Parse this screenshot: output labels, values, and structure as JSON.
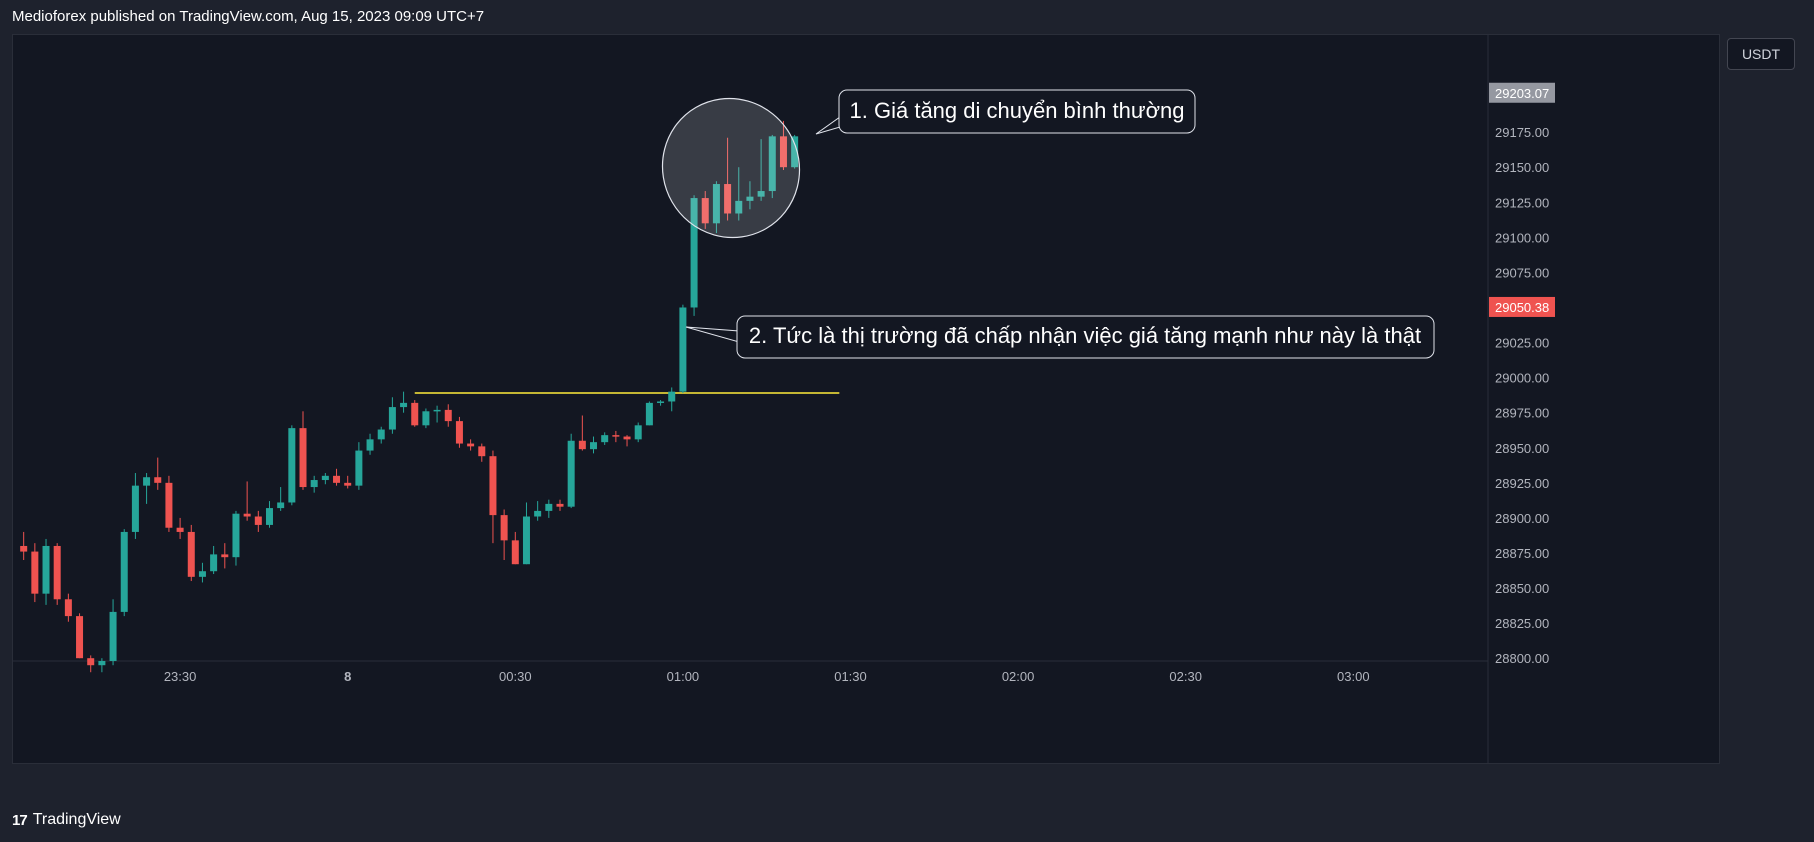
{
  "header": {
    "text": "Medioforex published on TradingView.com, Aug 15, 2023 09:09 UTC+7"
  },
  "footer": {
    "logo_icon": "tradingview-logo-icon",
    "brand": "TradingView"
  },
  "currency": "USDT",
  "colors": {
    "bull": "#26a69a",
    "bear": "#ef5350",
    "background": "#131722",
    "level_line": "#ffeb3b",
    "last_price_badge": "#ef5350",
    "high_badge": "#9598a1"
  },
  "chart_data": {
    "type": "candlestick",
    "x_ticks": [
      "23:30",
      "8",
      "00:30",
      "01:00",
      "01:30",
      "02:00",
      "02:30",
      "03:00"
    ],
    "y_ticks": [
      28800.0,
      28825.0,
      28850.0,
      28875.0,
      28900.0,
      28925.0,
      28950.0,
      28975.0,
      29000.0,
      29025.0,
      29050.0,
      29075.0,
      29100.0,
      29125.0,
      29150.0,
      29175.0
    ],
    "ylim": [
      28798,
      29220
    ],
    "candle_interval_minutes": 2,
    "price_labels": [
      {
        "value": 29203.07,
        "text": "29203.07",
        "kind": "high"
      },
      {
        "value": 29050.38,
        "text": "29050.38",
        "kind": "last"
      }
    ],
    "horizontal_level": {
      "value": 28989,
      "from": "00:12",
      "to": "01:28"
    },
    "candles": [
      {
        "t": "23:02",
        "o": 28880,
        "h": 28890,
        "l": 28870,
        "c": 28876
      },
      {
        "t": "23:04",
        "o": 28876,
        "h": 28882,
        "l": 28840,
        "c": 28846
      },
      {
        "t": "23:06",
        "o": 28846,
        "h": 28885,
        "l": 28838,
        "c": 28880
      },
      {
        "t": "23:08",
        "o": 28880,
        "h": 28882,
        "l": 28838,
        "c": 28842
      },
      {
        "t": "23:10",
        "o": 28842,
        "h": 28846,
        "l": 28826,
        "c": 28830
      },
      {
        "t": "23:12",
        "o": 28830,
        "h": 28832,
        "l": 28800,
        "c": 28800
      },
      {
        "t": "23:14",
        "o": 28800,
        "h": 28802,
        "l": 28790,
        "c": 28795
      },
      {
        "t": "23:16",
        "o": 28795,
        "h": 28800,
        "l": 28790,
        "c": 28798
      },
      {
        "t": "23:18",
        "o": 28798,
        "h": 28842,
        "l": 28795,
        "c": 28833
      },
      {
        "t": "23:20",
        "o": 28833,
        "h": 28892,
        "l": 28830,
        "c": 28890
      },
      {
        "t": "23:22",
        "o": 28890,
        "h": 28932,
        "l": 28885,
        "c": 28923
      },
      {
        "t": "23:24",
        "o": 28923,
        "h": 28932,
        "l": 28910,
        "c": 28929
      },
      {
        "t": "23:26",
        "o": 28929,
        "h": 28943,
        "l": 28920,
        "c": 28925
      },
      {
        "t": "23:28",
        "o": 28925,
        "h": 28930,
        "l": 28890,
        "c": 28893
      },
      {
        "t": "23:30",
        "o": 28893,
        "h": 28900,
        "l": 28885,
        "c": 28890
      },
      {
        "t": "23:32",
        "o": 28890,
        "h": 28895,
        "l": 28855,
        "c": 28858
      },
      {
        "t": "23:34",
        "o": 28858,
        "h": 28868,
        "l": 28854,
        "c": 28862
      },
      {
        "t": "23:36",
        "o": 28862,
        "h": 28880,
        "l": 28860,
        "c": 28874
      },
      {
        "t": "23:38",
        "o": 28874,
        "h": 28882,
        "l": 28864,
        "c": 28872
      },
      {
        "t": "23:40",
        "o": 28872,
        "h": 28905,
        "l": 28866,
        "c": 28903
      },
      {
        "t": "23:42",
        "o": 28903,
        "h": 28926,
        "l": 28898,
        "c": 28901
      },
      {
        "t": "23:44",
        "o": 28901,
        "h": 28905,
        "l": 28890,
        "c": 28895
      },
      {
        "t": "23:46",
        "o": 28895,
        "h": 28912,
        "l": 28893,
        "c": 28907
      },
      {
        "t": "23:48",
        "o": 28907,
        "h": 28922,
        "l": 28905,
        "c": 28911
      },
      {
        "t": "23:50",
        "o": 28911,
        "h": 28966,
        "l": 28909,
        "c": 28964
      },
      {
        "t": "23:52",
        "o": 28964,
        "h": 28976,
        "l": 28920,
        "c": 28922
      },
      {
        "t": "23:54",
        "o": 28922,
        "h": 28930,
        "l": 28918,
        "c": 28927
      },
      {
        "t": "23:56",
        "o": 28927,
        "h": 28932,
        "l": 28924,
        "c": 28930
      },
      {
        "t": "23:58",
        "o": 28930,
        "h": 28935,
        "l": 28923,
        "c": 28925
      },
      {
        "t": "00:00",
        "o": 28925,
        "h": 28930,
        "l": 28921,
        "c": 28923
      },
      {
        "t": "00:02",
        "o": 28923,
        "h": 28954,
        "l": 28920,
        "c": 28948
      },
      {
        "t": "00:04",
        "o": 28948,
        "h": 28960,
        "l": 28945,
        "c": 28956
      },
      {
        "t": "00:06",
        "o": 28956,
        "h": 28965,
        "l": 28953,
        "c": 28963
      },
      {
        "t": "00:08",
        "o": 28963,
        "h": 28986,
        "l": 28960,
        "c": 28979
      },
      {
        "t": "00:10",
        "o": 28979,
        "h": 28990,
        "l": 28975,
        "c": 28982
      },
      {
        "t": "00:12",
        "o": 28982,
        "h": 28984,
        "l": 28965,
        "c": 28966
      },
      {
        "t": "00:14",
        "o": 28966,
        "h": 28978,
        "l": 28964,
        "c": 28976
      },
      {
        "t": "00:16",
        "o": 28976,
        "h": 28980,
        "l": 28968,
        "c": 28977
      },
      {
        "t": "00:18",
        "o": 28977,
        "h": 28981,
        "l": 28965,
        "c": 28969
      },
      {
        "t": "00:20",
        "o": 28969,
        "h": 28972,
        "l": 28950,
        "c": 28953
      },
      {
        "t": "00:22",
        "o": 28953,
        "h": 28956,
        "l": 28948,
        "c": 28951
      },
      {
        "t": "00:24",
        "o": 28951,
        "h": 28953,
        "l": 28940,
        "c": 28944
      },
      {
        "t": "00:26",
        "o": 28944,
        "h": 28948,
        "l": 28882,
        "c": 28902
      },
      {
        "t": "00:28",
        "o": 28902,
        "h": 28906,
        "l": 28870,
        "c": 28884
      },
      {
        "t": "00:30",
        "o": 28884,
        "h": 28890,
        "l": 28867,
        "c": 28867
      },
      {
        "t": "00:32",
        "o": 28867,
        "h": 28911,
        "l": 28867,
        "c": 28901
      },
      {
        "t": "00:34",
        "o": 28901,
        "h": 28912,
        "l": 28898,
        "c": 28905
      },
      {
        "t": "00:36",
        "o": 28905,
        "h": 28913,
        "l": 28900,
        "c": 28910
      },
      {
        "t": "00:38",
        "o": 28910,
        "h": 28913,
        "l": 28905,
        "c": 28908
      },
      {
        "t": "00:40",
        "o": 28908,
        "h": 28960,
        "l": 28907,
        "c": 28955
      },
      {
        "t": "00:42",
        "o": 28955,
        "h": 28973,
        "l": 28948,
        "c": 28949
      },
      {
        "t": "00:44",
        "o": 28949,
        "h": 28958,
        "l": 28946,
        "c": 28954
      },
      {
        "t": "00:46",
        "o": 28954,
        "h": 28961,
        "l": 28952,
        "c": 28959
      },
      {
        "t": "00:48",
        "o": 28959,
        "h": 28962,
        "l": 28954,
        "c": 28958
      },
      {
        "t": "00:50",
        "o": 28958,
        "h": 28959,
        "l": 28951,
        "c": 28956
      },
      {
        "t": "00:52",
        "o": 28956,
        "h": 28968,
        "l": 28954,
        "c": 28966
      },
      {
        "t": "00:54",
        "o": 28966,
        "h": 28983,
        "l": 28966,
        "c": 28982
      },
      {
        "t": "00:56",
        "o": 28982,
        "h": 28984,
        "l": 28980,
        "c": 28983
      },
      {
        "t": "00:58",
        "o": 28983,
        "h": 28993,
        "l": 28976,
        "c": 28990
      },
      {
        "t": "01:00",
        "o": 28990,
        "h": 29052,
        "l": 28989,
        "c": 29050
      },
      {
        "t": "01:02",
        "o": 29050,
        "h": 29130,
        "l": 29044,
        "c": 29128
      },
      {
        "t": "01:04",
        "o": 29128,
        "h": 29133,
        "l": 29106,
        "c": 29110
      },
      {
        "t": "01:06",
        "o": 29110,
        "h": 29140,
        "l": 29103,
        "c": 29138
      },
      {
        "t": "01:08",
        "o": 29138,
        "h": 29171,
        "l": 29112,
        "c": 29117
      },
      {
        "t": "01:10",
        "o": 29117,
        "h": 29150,
        "l": 29112,
        "c": 29126
      },
      {
        "t": "01:12",
        "o": 29126,
        "h": 29140,
        "l": 29120,
        "c": 29129
      },
      {
        "t": "01:14",
        "o": 29129,
        "h": 29170,
        "l": 29126,
        "c": 29133
      },
      {
        "t": "01:16",
        "o": 29133,
        "h": 29173,
        "l": 29128,
        "c": 29172
      },
      {
        "t": "01:18",
        "o": 29172,
        "h": 29183,
        "l": 29148,
        "c": 29150
      },
      {
        "t": "01:20",
        "o": 29150,
        "h": 29173,
        "l": 29149,
        "c": 29172
      }
    ],
    "annotations": [
      {
        "text": "1. Giá tăng di chuyển bình thường",
        "target": "01:04–01:20 candles",
        "shape": "ellipse"
      },
      {
        "text": "2. Tức là thị trường đã chấp nhận việc giá tăng mạnh như này là thật",
        "target": "01:00 candle"
      }
    ]
  }
}
